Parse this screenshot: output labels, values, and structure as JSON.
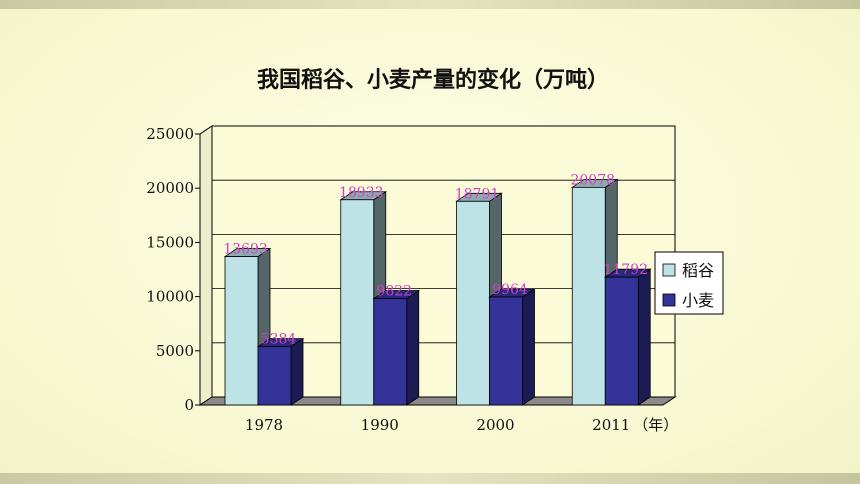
{
  "chart_data": {
    "type": "bar",
    "title": "我国稻谷、小麦产量的变化（万吨）",
    "categories": [
      "1978",
      "1990",
      "2000",
      "2011"
    ],
    "x_unit_label": "（年）",
    "series": [
      {
        "name": "稻谷",
        "values": [
          13693,
          18933,
          18791,
          20078
        ],
        "color": "#bde3e6"
      },
      {
        "name": "小麦",
        "values": [
          5384,
          9822,
          9964,
          11792
        ],
        "color": "#333399"
      }
    ],
    "data_labels": [
      [
        "13693",
        "18933",
        "18791",
        "20078"
      ],
      [
        "5384",
        "9822",
        "9964",
        "11792"
      ]
    ],
    "ylim": [
      0,
      25000
    ],
    "yticks": [
      0,
      5000,
      10000,
      15000,
      20000,
      25000
    ],
    "grid": true,
    "legend_position": "right",
    "data_label_color": "#d040c8"
  }
}
